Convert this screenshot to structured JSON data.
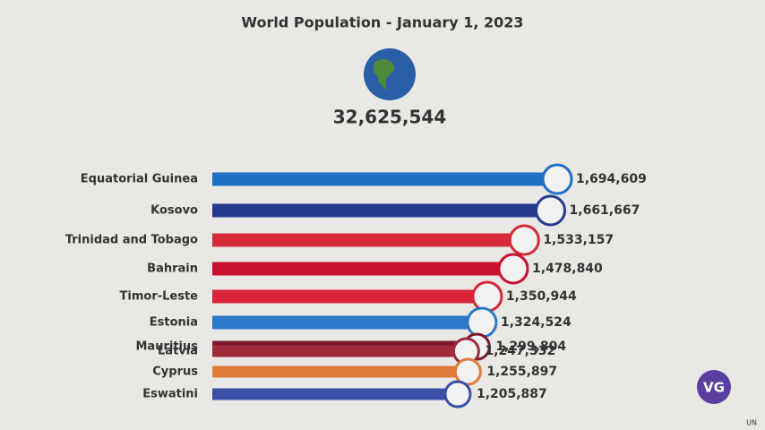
{
  "chart_data": {
    "type": "bar",
    "orientation": "horizontal",
    "title": "World Population - January 1, 2023",
    "total_label": "32,625,544",
    "categories": [
      "Equatorial Guinea",
      "Kosovo",
      "Trinidad and Tobago",
      "Bahrain",
      "Timor-Leste",
      "Estonia",
      "Mauritius",
      "Latvia",
      "Cyprus",
      "Eswatini"
    ],
    "values": [
      1694609,
      1661667,
      1533157,
      1478840,
      1350944,
      1324524,
      1299804,
      1247332,
      1255897,
      1205887
    ],
    "value_labels": [
      "1,694,609",
      "1,661,667",
      "1,533,157",
      "1,478,840",
      "1,350,944",
      "1,324,524",
      "1,299,804",
      "1,247,332",
      "1,255,897",
      "1,205,887"
    ],
    "colors": [
      "#1f6fc5",
      "#243a8f",
      "#d42b3a",
      "#c8102e",
      "#d9253a",
      "#2b78c9",
      "#7a1a2e",
      "#9e2a3a",
      "#e07a3a",
      "#3a4faa"
    ],
    "logo": "VG",
    "source": "UN"
  }
}
